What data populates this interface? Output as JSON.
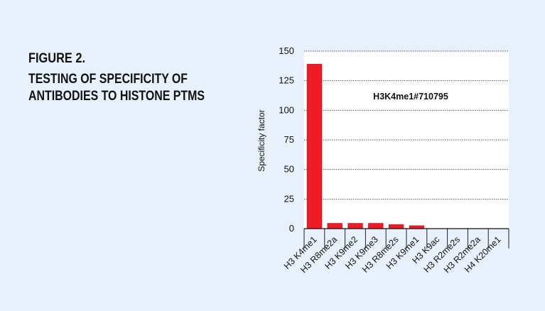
{
  "heading": {
    "label": "FIGURE 2.",
    "title_lines": [
      "TESTING OF SPECIFICITY OF",
      "ANTIBODIES TO HISTONE PTMS"
    ]
  },
  "chart_data": {
    "type": "bar",
    "annotation": "H3K4me1#710795",
    "y_label": "Specificity factor",
    "categories": [
      "H3 K4me1",
      "H3 R8me2a",
      "H3 K9me2",
      "H3 K9me3",
      "H3 R8me2s",
      "H3 K9me1",
      "H3 K9ac",
      "H3 R2me2s",
      "H3 R2me2a",
      "H4 K20me1"
    ],
    "values": [
      139,
      4.5,
      4.5,
      4.5,
      3.5,
      2.5,
      0,
      0,
      0,
      0
    ],
    "color": "#ee1c25",
    "ylim": [
      0,
      150
    ],
    "yticks": [
      0,
      25,
      50,
      75,
      100,
      125,
      150
    ],
    "grid": true
  }
}
